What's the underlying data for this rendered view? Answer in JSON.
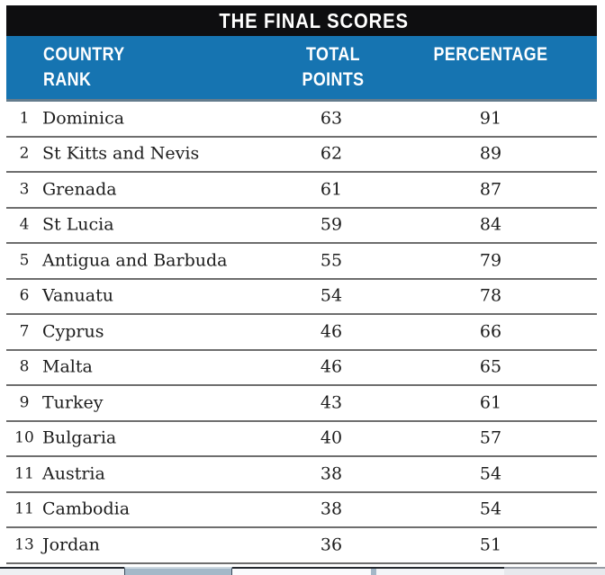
{
  "header": {
    "title": "THE FINAL SCORES"
  },
  "table": {
    "columns": {
      "country_line1": "COUNTRY",
      "country_line2": "RANK",
      "points_line1": "TOTAL",
      "points_line2": "POINTS",
      "percentage": "PERCENTAGE"
    },
    "rows": [
      {
        "rank": "1",
        "country": "Dominica",
        "points": "63",
        "percentage": "91"
      },
      {
        "rank": "2",
        "country": "St Kitts and Nevis",
        "points": "62",
        "percentage": "89"
      },
      {
        "rank": "3",
        "country": "Grenada",
        "points": "61",
        "percentage": "87"
      },
      {
        "rank": "4",
        "country": "St Lucia",
        "points": "59",
        "percentage": "84"
      },
      {
        "rank": "5",
        "country": "Antigua and Barbuda",
        "points": "55",
        "percentage": "79"
      },
      {
        "rank": "6",
        "country": "Vanuatu",
        "points": "54",
        "percentage": "78"
      },
      {
        "rank": "7",
        "country": "Cyprus",
        "points": "46",
        "percentage": "66"
      },
      {
        "rank": "8",
        "country": "Malta",
        "points": "46",
        "percentage": "65"
      },
      {
        "rank": "9",
        "country": "Turkey",
        "points": "43",
        "percentage": "61"
      },
      {
        "rank": "10",
        "country": "Bulgaria",
        "points": "40",
        "percentage": "57"
      },
      {
        "rank": "11",
        "country": "Austria",
        "points": "38",
        "percentage": "54"
      },
      {
        "rank": "11",
        "country": "Cambodia",
        "points": "38",
        "percentage": "54"
      },
      {
        "rank": "13",
        "country": "Jordan",
        "points": "36",
        "percentage": "51"
      }
    ]
  },
  "colors": {
    "title_bar_black": "#0e0e10",
    "header_blue": "#1674b1",
    "header_blue_bottom_edge": "#647c8d",
    "row_line_gray": "#6e6e6e",
    "body_text": "#1c1c1c",
    "strip_steel_blue": "#a4b8c8"
  },
  "chart_data": {
    "type": "table",
    "title": "THE FINAL SCORES",
    "columns": [
      "COUNTRY RANK",
      "COUNTRY",
      "TOTAL POINTS",
      "PERCENTAGE"
    ],
    "rows": [
      [
        1,
        "Dominica",
        63,
        91
      ],
      [
        2,
        "St Kitts and Nevis",
        62,
        89
      ],
      [
        3,
        "Grenada",
        61,
        87
      ],
      [
        4,
        "St Lucia",
        59,
        84
      ],
      [
        5,
        "Antigua and Barbuda",
        55,
        79
      ],
      [
        6,
        "Vanuatu",
        54,
        78
      ],
      [
        7,
        "Cyprus",
        46,
        66
      ],
      [
        8,
        "Malta",
        46,
        65
      ],
      [
        9,
        "Turkey",
        43,
        61
      ],
      [
        10,
        "Bulgaria",
        40,
        57
      ],
      [
        11,
        "Austria",
        38,
        54
      ],
      [
        11,
        "Cambodia",
        38,
        54
      ],
      [
        13,
        "Jordan",
        36,
        51
      ]
    ]
  }
}
